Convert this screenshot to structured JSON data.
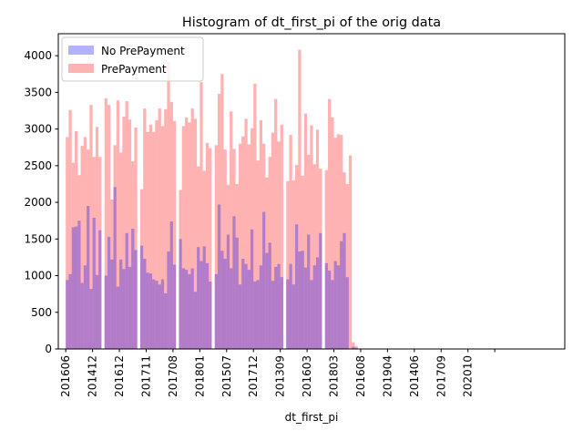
{
  "chart_data": {
    "type": "bar",
    "title": "Histogram of dt_first_pi of the orig data",
    "xlabel": "dt_first_pi",
    "ylabel": "",
    "ylim": [
      0,
      4300
    ],
    "yticks": [
      0,
      500,
      1000,
      1500,
      2000,
      2500,
      3000,
      3500,
      4000
    ],
    "xlim": [
      -2.5,
      167.5
    ],
    "xticks": [
      {
        "pos": 0,
        "label": "201606"
      },
      {
        "pos": 9,
        "label": "201412"
      },
      {
        "pos": 18,
        "label": "201612"
      },
      {
        "pos": 27,
        "label": "201711"
      },
      {
        "pos": 36,
        "label": "201708"
      },
      {
        "pos": 45,
        "label": "201801"
      },
      {
        "pos": 54,
        "label": "201507"
      },
      {
        "pos": 63,
        "label": "201712"
      },
      {
        "pos": 72,
        "label": "201309"
      },
      {
        "pos": 81,
        "label": "201603"
      },
      {
        "pos": 90,
        "label": "201803"
      },
      {
        "pos": 99,
        "label": "201608"
      },
      {
        "pos": 108,
        "label": "201904"
      },
      {
        "pos": 117,
        "label": "201406"
      },
      {
        "pos": 126,
        "label": "201709"
      },
      {
        "pos": 135,
        "label": "202010"
      },
      {
        "pos": 144,
        "label": ""
      }
    ],
    "legend_position": "top-left",
    "series": [
      {
        "name": "No PrePayment",
        "color": "#0000ff",
        "alpha": 0.3,
        "bins": [
          [
            0,
            1,
            940
          ],
          [
            1,
            2,
            1020
          ],
          [
            2,
            3,
            1660
          ],
          [
            3,
            4,
            1670
          ],
          [
            4,
            5,
            1750
          ],
          [
            5,
            6,
            900
          ],
          [
            6,
            7,
            1140
          ],
          [
            7,
            8,
            1950
          ],
          [
            8,
            9,
            820
          ],
          [
            9,
            10,
            1790
          ],
          [
            10,
            11,
            1010
          ],
          [
            11,
            12,
            1620
          ],
          [
            13,
            14,
            1000
          ],
          [
            14,
            15,
            1530
          ],
          [
            15,
            16,
            1220
          ],
          [
            16,
            17,
            2210
          ],
          [
            17,
            18,
            850
          ],
          [
            18,
            19,
            1220
          ],
          [
            19,
            20,
            1090
          ],
          [
            20,
            21,
            1580
          ],
          [
            21,
            22,
            1120
          ],
          [
            22,
            23,
            1640
          ],
          [
            23,
            24,
            1350
          ],
          [
            25,
            26,
            1410
          ],
          [
            26,
            27,
            1230
          ],
          [
            27,
            28,
            1040
          ],
          [
            28,
            29,
            1030
          ],
          [
            29,
            30,
            950
          ],
          [
            30,
            31,
            930
          ],
          [
            31,
            32,
            880
          ],
          [
            32,
            33,
            950
          ],
          [
            33,
            34,
            760
          ],
          [
            34,
            35,
            1330
          ],
          [
            35,
            36,
            1740
          ],
          [
            36,
            37,
            1150
          ],
          [
            38,
            39,
            1500
          ],
          [
            39,
            40,
            1100
          ],
          [
            40,
            41,
            1080
          ],
          [
            41,
            42,
            1020
          ],
          [
            42,
            43,
            1100
          ],
          [
            43,
            44,
            780
          ],
          [
            44,
            45,
            1390
          ],
          [
            45,
            46,
            1200
          ],
          [
            46,
            47,
            1400
          ],
          [
            47,
            48,
            1170
          ],
          [
            48,
            49,
            920
          ],
          [
            50,
            51,
            1020
          ],
          [
            51,
            52,
            1970
          ],
          [
            52,
            53,
            1340
          ],
          [
            53,
            54,
            1230
          ],
          [
            54,
            55,
            1560
          ],
          [
            55,
            56,
            1100
          ],
          [
            56,
            57,
            1810
          ],
          [
            57,
            58,
            1520
          ],
          [
            58,
            59,
            880
          ],
          [
            59,
            60,
            1230
          ],
          [
            60,
            61,
            1160
          ],
          [
            61,
            62,
            1080
          ],
          [
            62,
            63,
            1630
          ],
          [
            63,
            64,
            920
          ],
          [
            64,
            65,
            940
          ],
          [
            65,
            66,
            1140
          ],
          [
            66,
            67,
            1870
          ],
          [
            67,
            68,
            1310
          ],
          [
            68,
            69,
            1450
          ],
          [
            69,
            70,
            930
          ],
          [
            70,
            71,
            1120
          ],
          [
            71,
            72,
            1160
          ],
          [
            72,
            73,
            980
          ],
          [
            74,
            75,
            950
          ],
          [
            75,
            76,
            1160
          ],
          [
            76,
            77,
            880
          ],
          [
            77,
            78,
            1700
          ],
          [
            78,
            79,
            1330
          ],
          [
            79,
            80,
            1340
          ],
          [
            80,
            81,
            1110
          ],
          [
            81,
            82,
            1560
          ],
          [
            82,
            83,
            940
          ],
          [
            83,
            84,
            1140
          ],
          [
            84,
            85,
            1250
          ],
          [
            85,
            86,
            1580
          ],
          [
            87,
            88,
            1170
          ],
          [
            88,
            89,
            1070
          ],
          [
            89,
            90,
            940
          ],
          [
            90,
            91,
            1200
          ],
          [
            91,
            92,
            1140
          ],
          [
            92,
            93,
            1470
          ],
          [
            93,
            94,
            1580
          ],
          [
            94,
            95,
            980
          ],
          [
            96,
            97,
            30
          ],
          [
            97,
            98,
            15
          ]
        ]
      },
      {
        "name": "PrePayment",
        "color": "#ff0000",
        "alpha": 0.3,
        "bins": [
          [
            0,
            1,
            2890
          ],
          [
            1,
            2,
            3260
          ],
          [
            2,
            3,
            2540
          ],
          [
            3,
            4,
            2970
          ],
          [
            4,
            5,
            2370
          ],
          [
            5,
            6,
            2770
          ],
          [
            6,
            7,
            2890
          ],
          [
            7,
            8,
            2720
          ],
          [
            8,
            9,
            3330
          ],
          [
            9,
            10,
            2620
          ],
          [
            10,
            11,
            3030
          ],
          [
            11,
            12,
            2620
          ],
          [
            13,
            14,
            3420
          ],
          [
            14,
            15,
            3330
          ],
          [
            15,
            16,
            2040
          ],
          [
            16,
            17,
            2780
          ],
          [
            17,
            18,
            3390
          ],
          [
            18,
            19,
            2680
          ],
          [
            19,
            20,
            3170
          ],
          [
            20,
            21,
            3380
          ],
          [
            21,
            22,
            3130
          ],
          [
            22,
            23,
            2560
          ],
          [
            23,
            24,
            3020
          ],
          [
            25,
            26,
            2180
          ],
          [
            26,
            27,
            3280
          ],
          [
            27,
            28,
            2960
          ],
          [
            28,
            29,
            3060
          ],
          [
            29,
            30,
            2960
          ],
          [
            30,
            31,
            3120
          ],
          [
            31,
            32,
            3280
          ],
          [
            32,
            33,
            3040
          ],
          [
            33,
            34,
            3270
          ],
          [
            34,
            35,
            3920
          ],
          [
            35,
            36,
            3370
          ],
          [
            36,
            37,
            3110
          ],
          [
            38,
            39,
            2170
          ],
          [
            39,
            40,
            3040
          ],
          [
            40,
            41,
            3160
          ],
          [
            41,
            42,
            3090
          ],
          [
            42,
            43,
            3280
          ],
          [
            43,
            44,
            3140
          ],
          [
            44,
            45,
            2490
          ],
          [
            45,
            46,
            3640
          ],
          [
            46,
            47,
            2430
          ],
          [
            47,
            48,
            2810
          ],
          [
            48,
            49,
            2740
          ],
          [
            50,
            51,
            2780
          ],
          [
            51,
            52,
            3480
          ],
          [
            52,
            53,
            3750
          ],
          [
            53,
            54,
            2720
          ],
          [
            54,
            55,
            2240
          ],
          [
            55,
            56,
            3240
          ],
          [
            56,
            57,
            2730
          ],
          [
            57,
            58,
            2250
          ],
          [
            58,
            59,
            2800
          ],
          [
            59,
            60,
            2900
          ],
          [
            60,
            61,
            3140
          ],
          [
            61,
            62,
            2790
          ],
          [
            62,
            63,
            3010
          ],
          [
            63,
            64,
            3620
          ],
          [
            64,
            65,
            2570
          ],
          [
            65,
            66,
            3120
          ],
          [
            66,
            67,
            2800
          ],
          [
            67,
            68,
            2340
          ],
          [
            68,
            69,
            2620
          ],
          [
            69,
            70,
            2950
          ],
          [
            70,
            71,
            3410
          ],
          [
            71,
            72,
            2830
          ],
          [
            72,
            73,
            3060
          ],
          [
            74,
            75,
            2290
          ],
          [
            75,
            76,
            2920
          ],
          [
            76,
            77,
            2300
          ],
          [
            77,
            78,
            2510
          ],
          [
            78,
            79,
            4080
          ],
          [
            79,
            80,
            2360
          ],
          [
            80,
            81,
            3210
          ],
          [
            81,
            82,
            2650
          ],
          [
            82,
            83,
            3050
          ],
          [
            83,
            84,
            2520
          ],
          [
            84,
            85,
            2990
          ],
          [
            85,
            86,
            2460
          ],
          [
            87,
            88,
            2440
          ],
          [
            88,
            89,
            3410
          ],
          [
            89,
            90,
            3160
          ],
          [
            90,
            91,
            2880
          ],
          [
            91,
            92,
            2930
          ],
          [
            92,
            93,
            2920
          ],
          [
            93,
            94,
            2410
          ],
          [
            94,
            95,
            2250
          ],
          [
            95,
            96,
            2640
          ],
          [
            96,
            97,
            90
          ],
          [
            97,
            98,
            40
          ]
        ]
      }
    ]
  }
}
